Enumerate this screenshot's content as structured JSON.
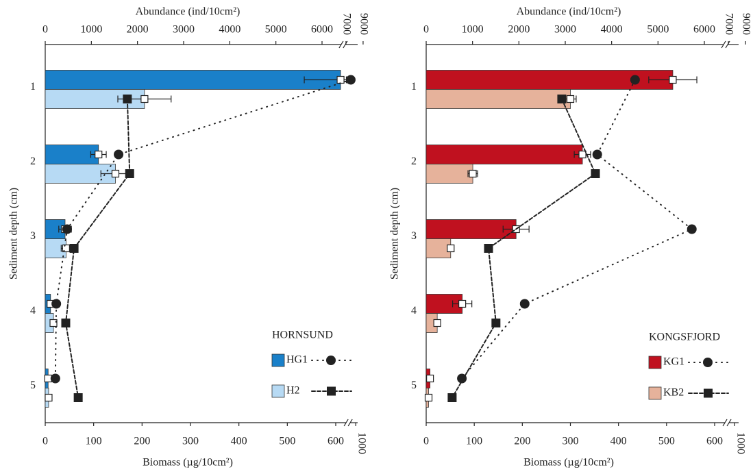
{
  "chart_data": [
    {
      "type": "bar",
      "orientation": "horizontal",
      "legend_title": "HORNSUND",
      "categories": [
        "1",
        "2",
        "3",
        "4",
        "5"
      ],
      "y_label": "Sediment depth (cm)",
      "x_label": "Biomass (µg/10cm²)",
      "x2_label": "Abundance (ind/10cm²)",
      "xlim": [
        0,
        1000
      ],
      "xticks": [
        0,
        100,
        200,
        300,
        400,
        500,
        600,
        1000
      ],
      "xbreak": [
        620,
        990
      ],
      "x2lim": [
        0,
        9000
      ],
      "x2ticks": [
        0,
        1000,
        2000,
        3000,
        4000,
        5000,
        6000,
        7000,
        9000
      ],
      "x2break": [
        6400,
        7000
      ],
      "series": [
        {
          "name": "HG1",
          "color": "#1a80c9",
          "values": [
            610,
            110,
            41,
            11,
            6
          ],
          "errors": [
            75,
            16,
            13,
            3,
            3
          ],
          "abundance": [
            7560,
            1590,
            475,
            240,
            220
          ],
          "marker": "circle",
          "line": "dotted"
        },
        {
          "name": "H2",
          "color": "#b7daf4",
          "values": [
            205,
            145,
            43,
            17,
            7
          ],
          "errors": [
            55,
            30,
            10,
            4,
            2
          ],
          "abundance": [
            1780,
            1830,
            625,
            445,
            715
          ],
          "marker": "square",
          "line": "dashed"
        }
      ]
    },
    {
      "type": "bar",
      "orientation": "horizontal",
      "legend_title": "KONGSFJORD",
      "categories": [
        "1",
        "2",
        "3",
        "4",
        "5"
      ],
      "y_label": "Sediment depth (cm)",
      "x_label": "Biomass (µg/10cm²)",
      "x2_label": "Abundance (ind/10cm²)",
      "xlim": [
        0,
        1000
      ],
      "xticks": [
        0,
        100,
        200,
        300,
        400,
        500,
        600,
        1000
      ],
      "xbreak": [
        620,
        990
      ],
      "x2lim": [
        0,
        9000
      ],
      "x2ticks": [
        0,
        1000,
        2000,
        3000,
        4000,
        5000,
        6000,
        7000,
        9000
      ],
      "x2break": [
        6400,
        7000
      ],
      "series": [
        {
          "name": "KG1",
          "color": "#c0111f",
          "values": [
            513,
            325,
            187,
            75,
            8
          ],
          "errors": [
            50,
            17,
            27,
            20,
            2
          ],
          "abundance": [
            4505,
            3690,
            5730,
            2125,
            770
          ],
          "marker": "circle",
          "line": "dotted"
        },
        {
          "name": "KB2",
          "color": "#e6b29b",
          "values": [
            300,
            97,
            51,
            23,
            5
          ],
          "errors": [
            12,
            10,
            6,
            6,
            2
          ],
          "abundance": [
            2925,
            3650,
            1345,
            1505,
            560
          ],
          "marker": "square",
          "line": "dashed"
        }
      ]
    }
  ]
}
